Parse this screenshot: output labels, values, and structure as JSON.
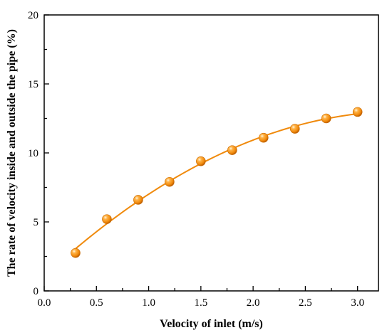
{
  "chart_data": {
    "type": "line",
    "title": "",
    "xlabel": "Velocity of inlet (m/s)",
    "ylabel": "The rate of velocity inside and outside the pipe (%)",
    "xlim": [
      0.0,
      3.2
    ],
    "ylim": [
      0,
      20
    ],
    "xticks": [
      "0.0",
      "0.5",
      "1.0",
      "1.5",
      "2.0",
      "2.5",
      "3.0"
    ],
    "yticks": [
      "0",
      "5",
      "10",
      "15",
      "20"
    ],
    "grid": false,
    "legend": "none",
    "series": [
      {
        "color": "#f08a0c",
        "marker": "sphere",
        "line": "smooth-fit",
        "x": [
          0.3,
          0.6,
          0.9,
          1.2,
          1.5,
          1.8,
          2.1,
          2.4,
          2.7,
          3.0
        ],
        "y": [
          2.75,
          5.2,
          6.6,
          7.9,
          9.4,
          10.2,
          11.1,
          11.75,
          12.5,
          12.97
        ]
      }
    ]
  }
}
